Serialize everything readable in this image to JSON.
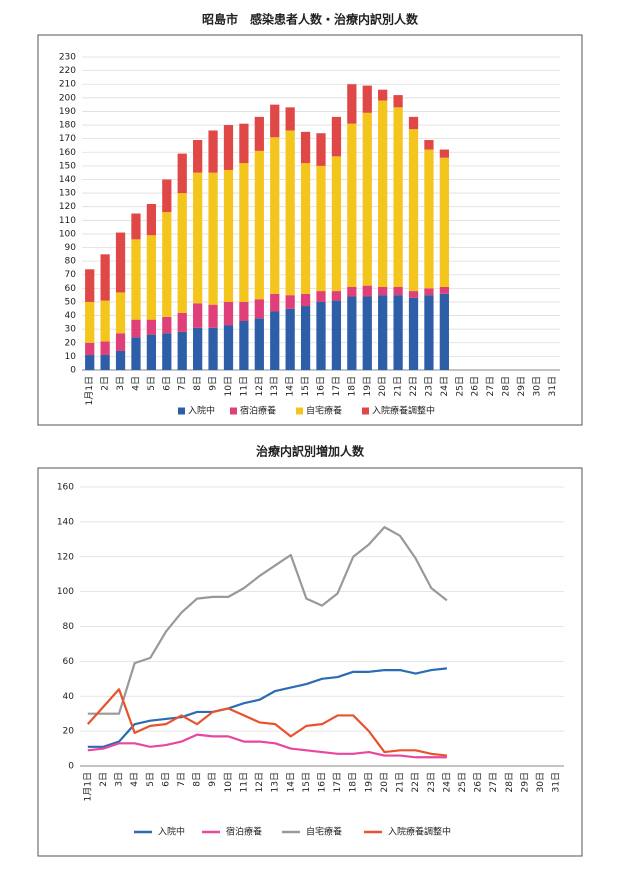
{
  "chart_data": [
    {
      "type": "bar",
      "stacked": true,
      "title": "昭島市　感染患者人数・治療内訳別人数",
      "categories": [
        "1月1日",
        "2日",
        "3日",
        "4日",
        "5日",
        "6日",
        "7日",
        "8日",
        "9日",
        "10日",
        "11日",
        "12日",
        "13日",
        "14日",
        "15日",
        "16日",
        "17日",
        "18日",
        "19日",
        "20日",
        "21日",
        "22日",
        "23日",
        "24日",
        "25日",
        "26日",
        "27日",
        "28日",
        "29日",
        "30日",
        "31日"
      ],
      "series": [
        {
          "name": "入院中",
          "color": "#2e5ea8",
          "values": [
            11,
            11,
            14,
            24,
            26,
            27,
            28,
            31,
            31,
            33,
            36,
            38,
            43,
            45,
            47,
            50,
            51,
            54,
            54,
            55,
            55,
            53,
            55,
            56,
            null,
            null,
            null,
            null,
            null,
            null,
            null
          ]
        },
        {
          "name": "宿泊療養",
          "color": "#e0407a",
          "values": [
            9,
            10,
            13,
            13,
            11,
            12,
            14,
            18,
            17,
            17,
            14,
            14,
            13,
            10,
            9,
            8,
            7,
            7,
            8,
            6,
            6,
            5,
            5,
            5,
            null,
            null,
            null,
            null,
            null,
            null,
            null
          ]
        },
        {
          "name": "自宅療養",
          "color": "#f4c51c",
          "values": [
            30,
            30,
            30,
            59,
            62,
            77,
            88,
            96,
            97,
            97,
            102,
            109,
            115,
            121,
            96,
            92,
            99,
            120,
            127,
            137,
            132,
            119,
            102,
            95,
            null,
            null,
            null,
            null,
            null,
            null,
            null
          ]
        },
        {
          "name": "入院療養調整中",
          "color": "#e04848",
          "values": [
            24,
            34,
            44,
            19,
            23,
            24,
            29,
            24,
            31,
            33,
            29,
            25,
            24,
            17,
            23,
            24,
            29,
            29,
            20,
            8,
            9,
            9,
            7,
            6,
            null,
            null,
            null,
            null,
            null,
            null,
            null
          ]
        }
      ],
      "ylim": [
        0,
        230
      ],
      "yticks": [
        0,
        10,
        20,
        30,
        40,
        50,
        60,
        70,
        80,
        90,
        100,
        110,
        120,
        130,
        140,
        150,
        160,
        170,
        180,
        190,
        200,
        210,
        220,
        230
      ],
      "grid": true
    },
    {
      "type": "line",
      "title": "治療内訳別増加人数",
      "categories": [
        "1月1日",
        "2日",
        "3日",
        "4日",
        "5日",
        "6日",
        "7日",
        "8日",
        "9日",
        "10日",
        "11日",
        "12日",
        "13日",
        "14日",
        "15日",
        "16日",
        "17日",
        "18日",
        "19日",
        "20日",
        "21日",
        "22日",
        "23日",
        "24日",
        "25日",
        "26日",
        "27日",
        "28日",
        "29日",
        "30日",
        "31日"
      ],
      "series": [
        {
          "name": "入院中",
          "color": "#2b6cb3",
          "values": [
            11,
            11,
            14,
            24,
            26,
            27,
            28,
            31,
            31,
            33,
            36,
            38,
            43,
            45,
            47,
            50,
            51,
            54,
            54,
            55,
            55,
            53,
            55,
            56,
            null,
            null,
            null,
            null,
            null,
            null,
            null
          ]
        },
        {
          "name": "宿泊療養",
          "color": "#e846a0",
          "values": [
            9,
            10,
            13,
            13,
            11,
            12,
            14,
            18,
            17,
            17,
            14,
            14,
            13,
            10,
            9,
            8,
            7,
            7,
            8,
            6,
            6,
            5,
            5,
            5,
            null,
            null,
            null,
            null,
            null,
            null,
            null
          ]
        },
        {
          "name": "自宅療養",
          "color": "#999999",
          "values": [
            30,
            30,
            30,
            59,
            62,
            77,
            88,
            96,
            97,
            97,
            102,
            109,
            115,
            121,
            96,
            92,
            99,
            120,
            127,
            137,
            132,
            119,
            102,
            95,
            null,
            null,
            null,
            null,
            null,
            null,
            null
          ]
        },
        {
          "name": "入院療養調整中",
          "color": "#e8522c",
          "values": [
            24,
            34,
            44,
            19,
            23,
            24,
            29,
            24,
            31,
            33,
            29,
            25,
            24,
            17,
            23,
            24,
            29,
            29,
            20,
            8,
            9,
            9,
            7,
            6,
            null,
            null,
            null,
            null,
            null,
            null,
            null
          ]
        }
      ],
      "ylim": [
        0,
        160
      ],
      "yticks": [
        0,
        20,
        40,
        60,
        80,
        100,
        120,
        140,
        160
      ],
      "grid": true
    }
  ]
}
